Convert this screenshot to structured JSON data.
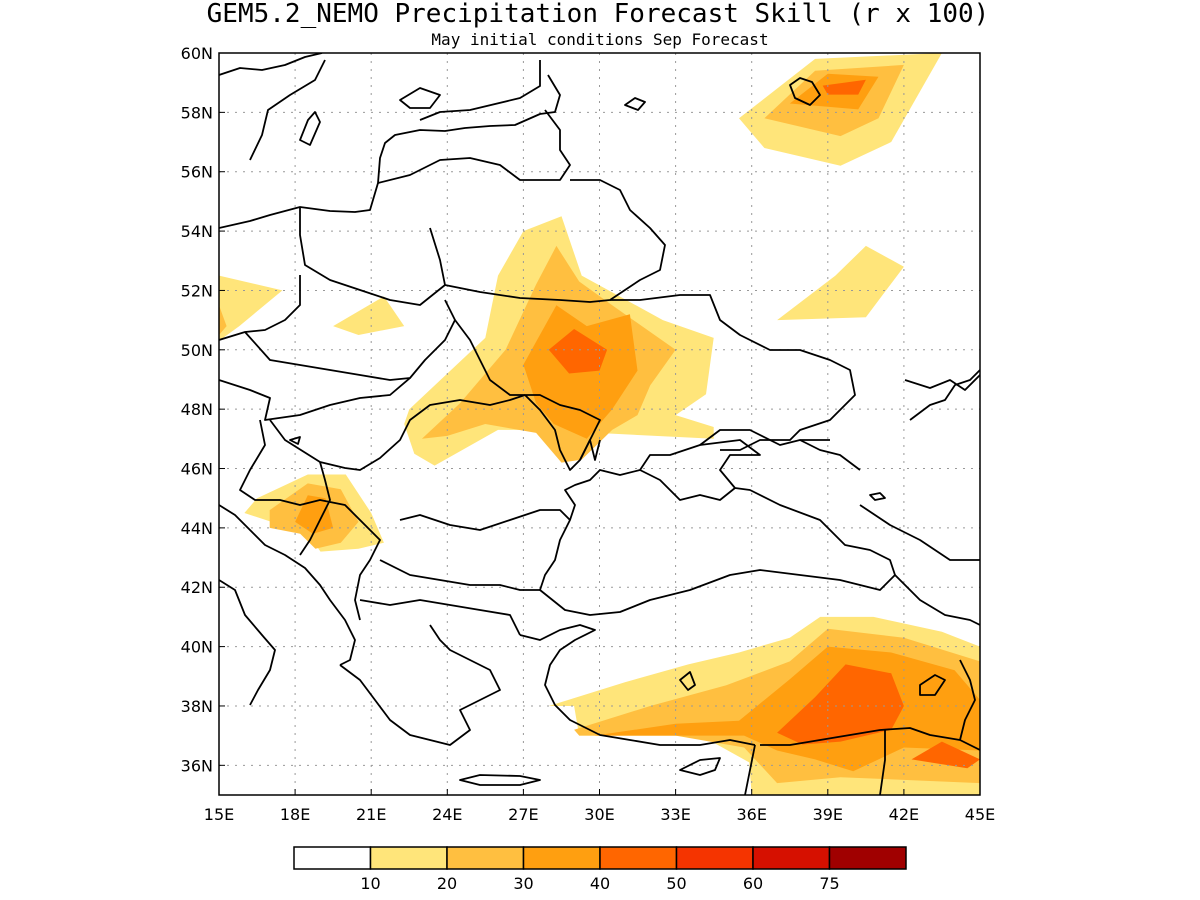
{
  "title": "GEM5.2_NEMO Precipitation Forecast Skill (r x 100)",
  "subtitle": "May initial conditions  Sep Forecast",
  "map": {
    "lon_range": [
      15,
      45
    ],
    "lat_range": [
      35,
      60
    ],
    "grid": "dotted",
    "lon_ticks": [
      "15E",
      "18E",
      "21E",
      "24E",
      "27E",
      "30E",
      "33E",
      "36E",
      "39E",
      "42E",
      "45E"
    ],
    "lat_ticks": [
      "60N",
      "58N",
      "56N",
      "54N",
      "52N",
      "50N",
      "48N",
      "46N",
      "44N",
      "42N",
      "40N",
      "38N",
      "36N"
    ],
    "colorbar": {
      "colors": [
        "#ffffff",
        "#ffe57a",
        "#ffbf40",
        "#ff9f10",
        "#ff6600",
        "#f53400",
        "#d61000",
        "#a00000"
      ],
      "labels": [
        "10",
        "20",
        "30",
        "40",
        "50",
        "60",
        "75"
      ]
    },
    "skill_regions": [
      {
        "level": 1,
        "polygon": [
          [
            35.5,
            57.8
          ],
          [
            38.5,
            59.8
          ],
          [
            43.5,
            60
          ],
          [
            41.5,
            57
          ],
          [
            39.5,
            56.2
          ],
          [
            36.5,
            56.8
          ]
        ]
      },
      {
        "level": 2,
        "polygon": [
          [
            36.5,
            57.8
          ],
          [
            38.5,
            59.4
          ],
          [
            42,
            59.6
          ],
          [
            41,
            57.8
          ],
          [
            39.5,
            57.2
          ]
        ]
      },
      {
        "level": 3,
        "polygon": [
          [
            37.5,
            58.3
          ],
          [
            39,
            59.3
          ],
          [
            41,
            59.2
          ],
          [
            40.2,
            58.1
          ]
        ]
      },
      {
        "level": 4,
        "polygon": [
          [
            38.8,
            58.9
          ],
          [
            40.5,
            59.1
          ],
          [
            40.2,
            58.6
          ],
          [
            39,
            58.6
          ]
        ]
      },
      {
        "level": 1,
        "polygon": [
          [
            37,
            51
          ],
          [
            39.3,
            52.5
          ],
          [
            40.5,
            53.5
          ],
          [
            42,
            52.8
          ],
          [
            40.5,
            51.1
          ]
        ]
      },
      {
        "level": 1,
        "polygon": [
          [
            15,
            52.5
          ],
          [
            17.5,
            52
          ],
          [
            15.8,
            50.8
          ],
          [
            15,
            50.3
          ]
        ]
      },
      {
        "level": 2,
        "polygon": [
          [
            15,
            51.5
          ],
          [
            15.3,
            50.8
          ],
          [
            15,
            50.5
          ]
        ]
      },
      {
        "level": 1,
        "polygon": [
          [
            19.5,
            50.8
          ],
          [
            21.5,
            51.8
          ],
          [
            22.3,
            50.8
          ],
          [
            20.5,
            50.5
          ]
        ]
      },
      {
        "level": 1,
        "polygon": [
          [
            22.5,
            48
          ],
          [
            25.5,
            50.4
          ],
          [
            26,
            52.5
          ],
          [
            27,
            54
          ],
          [
            28.5,
            54.5
          ],
          [
            29.3,
            52.5
          ],
          [
            32.5,
            51
          ],
          [
            34.5,
            50.4
          ],
          [
            34.2,
            48.5
          ],
          [
            33,
            47.8
          ],
          [
            34.5,
            47.4
          ],
          [
            34.5,
            47
          ],
          [
            27.5,
            47.3
          ],
          [
            26,
            47.3
          ],
          [
            23.5,
            46.1
          ],
          [
            22.7,
            46.5
          ],
          [
            22.3,
            47.5
          ]
        ]
      },
      {
        "level": 2,
        "polygon": [
          [
            23,
            47
          ],
          [
            24.5,
            48.2
          ],
          [
            26.3,
            50
          ],
          [
            27.5,
            52.2
          ],
          [
            28.3,
            53.5
          ],
          [
            29.2,
            52.3
          ],
          [
            30.5,
            51.5
          ],
          [
            33,
            50
          ],
          [
            32,
            48.8
          ],
          [
            31.5,
            47.8
          ],
          [
            30.5,
            47.3
          ],
          [
            29.3,
            46.3
          ],
          [
            28.5,
            46.2
          ],
          [
            27.5,
            47.2
          ],
          [
            25.5,
            47.5
          ],
          [
            24,
            47.1
          ]
        ]
      },
      {
        "level": 3,
        "polygon": [
          [
            27,
            49.5
          ],
          [
            28.3,
            51.5
          ],
          [
            29.5,
            50.8
          ],
          [
            31.2,
            51.2
          ],
          [
            31.5,
            49.3
          ],
          [
            30.5,
            48
          ],
          [
            29.5,
            47
          ],
          [
            28.2,
            47.5
          ],
          [
            27.5,
            48.2
          ]
        ]
      },
      {
        "level": 4,
        "polygon": [
          [
            28,
            50
          ],
          [
            29,
            50.7
          ],
          [
            30.3,
            50
          ],
          [
            30,
            49.3
          ],
          [
            28.8,
            49.2
          ]
        ]
      },
      {
        "level": 1,
        "polygon": [
          [
            16.5,
            45
          ],
          [
            18.5,
            45.8
          ],
          [
            20,
            45.8
          ],
          [
            21,
            44.5
          ],
          [
            21.5,
            43.5
          ],
          [
            20.5,
            43.3
          ],
          [
            19,
            43.2
          ],
          [
            18.5,
            43.8
          ],
          [
            16,
            44.5
          ]
        ]
      },
      {
        "level": 2,
        "polygon": [
          [
            17,
            44.6
          ],
          [
            18.5,
            45.5
          ],
          [
            19.8,
            45.3
          ],
          [
            20.5,
            44.2
          ],
          [
            19.8,
            43.5
          ],
          [
            18.8,
            43.3
          ],
          [
            18.2,
            43.8
          ],
          [
            17,
            44
          ]
        ]
      },
      {
        "level": 3,
        "polygon": [
          [
            18,
            44.2
          ],
          [
            18.5,
            45.1
          ],
          [
            19.2,
            45
          ],
          [
            19.5,
            44
          ],
          [
            18.7,
            43.8
          ]
        ]
      },
      {
        "level": 1,
        "polygon": [
          [
            28,
            38
          ],
          [
            31,
            38.8
          ],
          [
            33.5,
            39.4
          ],
          [
            35.5,
            39.8
          ],
          [
            37.5,
            40.3
          ],
          [
            38.7,
            41
          ],
          [
            40.8,
            41
          ],
          [
            43.5,
            40.5
          ],
          [
            45,
            40
          ],
          [
            45,
            35
          ],
          [
            36,
            35
          ],
          [
            35.9,
            36.1
          ],
          [
            34,
            37
          ],
          [
            29.2,
            37
          ],
          [
            29,
            38
          ]
        ]
      },
      {
        "level": 2,
        "polygon": [
          [
            29,
            37.2
          ],
          [
            32,
            38
          ],
          [
            35,
            38.7
          ],
          [
            37.5,
            39.5
          ],
          [
            39,
            40.6
          ],
          [
            42,
            40.3
          ],
          [
            45,
            39.5
          ],
          [
            45,
            35.4
          ],
          [
            39.5,
            35.6
          ],
          [
            37,
            35.4
          ],
          [
            35.7,
            36.6
          ],
          [
            33,
            37
          ],
          [
            29.2,
            37
          ]
        ]
      },
      {
        "level": 3,
        "polygon": [
          [
            29.8,
            37
          ],
          [
            33,
            37.4
          ],
          [
            35.5,
            37.5
          ],
          [
            37.5,
            38.9
          ],
          [
            39,
            40
          ],
          [
            41.5,
            39.8
          ],
          [
            44,
            39.2
          ],
          [
            45,
            38.2
          ],
          [
            45,
            36.5
          ],
          [
            42,
            36.6
          ],
          [
            40,
            35.8
          ],
          [
            38.5,
            36.2
          ],
          [
            37,
            36.5
          ],
          [
            35.7,
            37
          ]
        ]
      },
      {
        "level": 4,
        "polygon": [
          [
            37,
            37.1
          ],
          [
            38.5,
            38.3
          ],
          [
            39.7,
            39.4
          ],
          [
            41.5,
            39.1
          ],
          [
            42,
            38
          ],
          [
            41.5,
            37.2
          ],
          [
            39.5,
            36.8
          ],
          [
            38,
            36.7
          ]
        ]
      },
      {
        "level": 4,
        "polygon": [
          [
            42.3,
            36.2
          ],
          [
            43.5,
            36.8
          ],
          [
            45,
            36.2
          ],
          [
            44.5,
            35.9
          ]
        ]
      }
    ]
  }
}
